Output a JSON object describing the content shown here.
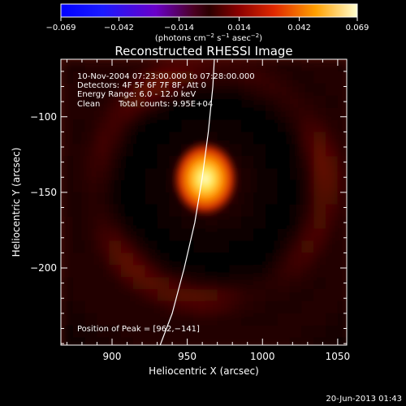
{
  "chart_data": {
    "type": "heatmap",
    "title": "Reconstructed RHESSI Image",
    "xlabel": "Heliocentric X (arcsec)",
    "ylabel": "Heliocentric Y (arcsec)",
    "xlim": [
      866,
      1056
    ],
    "ylim": [
      -251,
      -62
    ],
    "x_ticks": [
      900,
      950,
      1000,
      1050
    ],
    "x_tick_labels": [
      "900",
      "950",
      "1000",
      "1050"
    ],
    "y_ticks": [
      -100,
      -150,
      -200
    ],
    "y_tick_labels": [
      "−100",
      "−150",
      "−200"
    ],
    "colorbar": {
      "range": [
        -0.069,
        0.069
      ],
      "ticks": [
        -0.069,
        -0.042,
        -0.014,
        0.014,
        0.042,
        0.069
      ],
      "tick_labels": [
        "−0.069",
        "−0.042",
        "−0.014",
        "0.014",
        "0.042",
        "0.069"
      ],
      "unit_label_parts": [
        "(photons cm",
        "−2",
        " s",
        "−1",
        " asec",
        "−2",
        ")"
      ]
    },
    "annotations": [
      "10-Nov-2004 07:23:00.000 to 07:28:00.000",
      "Detectors: 4F 5F 6F 7F 8F, Att 0",
      "Energy Range: 6.0 - 12.0 keV",
      "Clean",
      "Total counts: 9.95E+04"
    ],
    "peak_label": "Position of Peak = [962,−141]",
    "peak": {
      "x": 962,
      "y": -141,
      "value": 0.069
    },
    "ring": {
      "center": [
        962,
        -141
      ],
      "radius": 75,
      "width": 12,
      "value": 0.02
    },
    "background_value": 0.012,
    "limb_curve": [
      [
        932,
        -251
      ],
      [
        940,
        -230
      ],
      [
        948,
        -200
      ],
      [
        955,
        -170
      ],
      [
        960,
        -140
      ],
      [
        964,
        -110
      ],
      [
        967,
        -80
      ],
      [
        968,
        -62
      ]
    ],
    "colormap": [
      "#000000",
      "#2a0000",
      "#6a0d00",
      "#b01c00",
      "#f05a00",
      "#ffb020",
      "#ffffb0"
    ]
  },
  "timestamp": "20-Jun-2013 01:43"
}
